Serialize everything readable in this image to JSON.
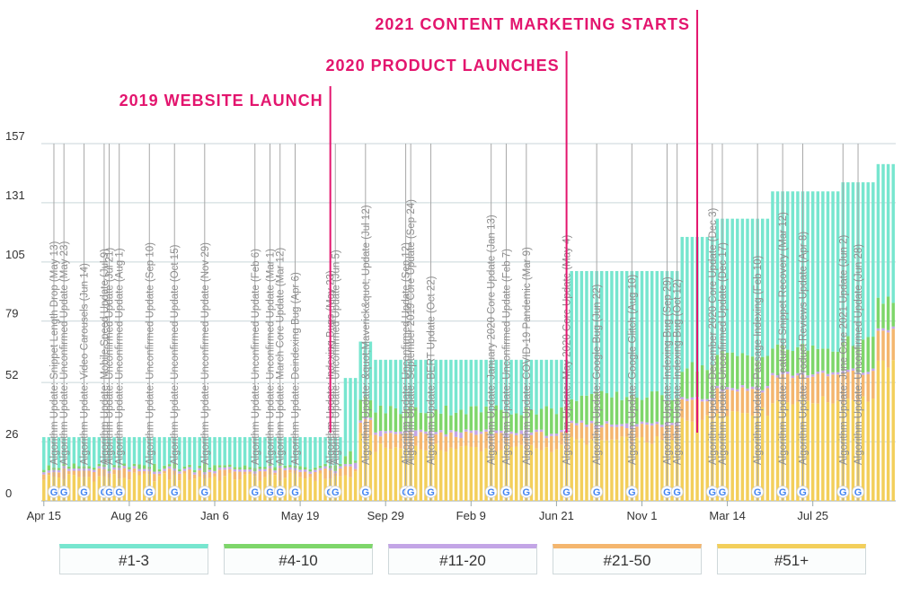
{
  "chart_data": {
    "type": "bar",
    "stacked": true,
    "y_ticks": [
      0,
      26,
      52,
      79,
      105,
      131,
      157
    ],
    "ylim": [
      0,
      157
    ],
    "x_tick_labels": [
      "Apr 15",
      "Aug 26",
      "Jan 6",
      "May 19",
      "Sep 29",
      "Feb 9",
      "Jun 21",
      "Nov 1",
      "Mar 14",
      "Jul 25"
    ],
    "grid": true,
    "legend_placement": "bottom",
    "series": [
      {
        "name": "#51+",
        "color": "#f3cf5b"
      },
      {
        "name": "#21-50",
        "color": "#f4b66e"
      },
      {
        "name": "#11-20",
        "color": "#c3a5e6"
      },
      {
        "name": "#4-10",
        "color": "#7ed66a"
      },
      {
        "name": "#1-3",
        "color": "#77e6cf"
      }
    ],
    "legend_order": [
      "#1-3",
      "#4-10",
      "#11-20",
      "#21-50",
      "#51+"
    ],
    "phases": [
      {
        "from": 0,
        "to": 59,
        "total": 28,
        "top3": 13,
        "top10": 14,
        "top20": 14,
        "top50": 14
      },
      {
        "from": 60,
        "to": 62,
        "total": 54,
        "top3": 14,
        "top10": 20,
        "top20": 25,
        "top50": 28
      },
      {
        "from": 63,
        "to": 65,
        "total": 70,
        "top3": 35,
        "top10": 44,
        "top20": 46,
        "top50": 50
      },
      {
        "from": 66,
        "to": 104,
        "total": 62,
        "top3": 29,
        "top10": 40,
        "top20": 48,
        "top50": 52
      },
      {
        "from": 105,
        "to": 126,
        "total": 101,
        "top3": 33,
        "top10": 46,
        "top20": 54,
        "top50": 58
      },
      {
        "from": 127,
        "to": 133,
        "total": 116,
        "top3": 45,
        "top10": 59,
        "top20": 65,
        "top50": 70
      },
      {
        "from": 134,
        "to": 144,
        "total": 124,
        "top3": 49,
        "top10": 64,
        "top20": 71,
        "top50": 76
      },
      {
        "from": 145,
        "to": 158,
        "total": 136,
        "top3": 55,
        "top10": 67,
        "top20": 74,
        "top50": 80
      },
      {
        "from": 159,
        "to": 165,
        "total": 140,
        "top3": 56,
        "top10": 70,
        "top20": 76,
        "top50": 82
      },
      {
        "from": 166,
        "to": 169,
        "total": 148,
        "top3": 75,
        "top10": 88,
        "top20": 96,
        "top50": 102
      }
    ],
    "algorithm_updates": [
      {
        "label": "Algorithm Update: Snippet Length Drop (May 13)",
        "bar": 2
      },
      {
        "label": "Algorithm Update: Unconfirmed Update (May 23)",
        "bar": 4
      },
      {
        "label": "Algorithm Update: Video Carousels (Jun 14)",
        "bar": 8
      },
      {
        "label": "Algorithm Update: Mobile Speed Update (Jul 9)",
        "bar": 12
      },
      {
        "label": "Algorithm Update: Unconfirmed Update (Jul 21)",
        "bar": 13
      },
      {
        "label": "Algorithm Update: Unconfirmed Update (Aug 1)",
        "bar": 15
      },
      {
        "label": "Algorithm Update: Unconfirmed Update (Sep 10)",
        "bar": 21
      },
      {
        "label": "Algorithm Update: Unconfirmed Update (Oct 15)",
        "bar": 26
      },
      {
        "label": "Algorithm Update: Unconfirmed Update (Nov 29)",
        "bar": 32
      },
      {
        "label": "Algorithm Update: Unconfirmed Update (Feb 6)",
        "bar": 42
      },
      {
        "label": "Algorithm Update: Unconfirmed Update (Mar 1)",
        "bar": 45
      },
      {
        "label": "Algorithm Update: March Core Update (Mar 12)",
        "bar": 47
      },
      {
        "label": "Algorithm Update: Deindexing Bug (Apr 6)",
        "bar": 50
      },
      {
        "label": "Algorithm Update: Indexing Bugs (May 23)",
        "bar": 57
      },
      {
        "label": "Algorithm Update: Unconfirmed Update (Jun 5)",
        "bar": 58
      },
      {
        "label": "Algorithm Update: &quot;Maverick&quot; Update (Jul 12)",
        "bar": 64
      },
      {
        "label": "Algorithm Update: Unconfirmed Update (Sep 12)",
        "bar": 72
      },
      {
        "label": "Algorithm Update: September 2019 Core Update (Sep 24)",
        "bar": 73
      },
      {
        "label": "Algorithm Update: BERT Update (Oct 22)",
        "bar": 77
      },
      {
        "label": "Algorithm Update: January 2020 Core Update (Jan 13)",
        "bar": 89
      },
      {
        "label": "Algorithm Update: Unconfirmed Update (Feb 7)",
        "bar": 92
      },
      {
        "label": "Algorithm Update: COVID-19 Pandemic (Mar 9)",
        "bar": 96
      },
      {
        "label": "Algorithm Update: May 2020 Core Update (May 4)",
        "bar": 104
      },
      {
        "label": "Algorithm Update: Google Bug (Jun 22)",
        "bar": 110
      },
      {
        "label": "Algorithm Update: Google Glitch (Aug 10)",
        "bar": 117
      },
      {
        "label": "Algorithm Update: Indexing Bug (Sep 29)",
        "bar": 124
      },
      {
        "label": "Algorithm Update: Indexing Bug (Oct 12)",
        "bar": 126
      },
      {
        "label": "Algorithm Update: December 2020 Core Update (Dec 3)",
        "bar": 133
      },
      {
        "label": "Algorithm Update: Unconfirmed Update (Dec 17)",
        "bar": 135
      },
      {
        "label": "Algorithm Update: Passage Indexing (Feb 10)",
        "bar": 142
      },
      {
        "label": "Algorithm Update: Featured Snippet Recovery (Mar 12)",
        "bar": 147
      },
      {
        "label": "Algorithm Update: Product Reviews Update (Apr 8)",
        "bar": 151
      },
      {
        "label": "Algorithm Update: June Core 2021 Update (Jun 2)",
        "bar": 159
      },
      {
        "label": "Algorithm Update: Unconfirmed Update (Jun 28)",
        "bar": 162
      }
    ],
    "annotations": [
      {
        "text": "2019 WEBSITE LAUNCH",
        "bar": 57
      },
      {
        "text": "2020 PRODUCT LAUNCHES",
        "bar": 104
      },
      {
        "text": "2021 CONTENT MARKETING STARTS",
        "bar": 130
      }
    ]
  }
}
